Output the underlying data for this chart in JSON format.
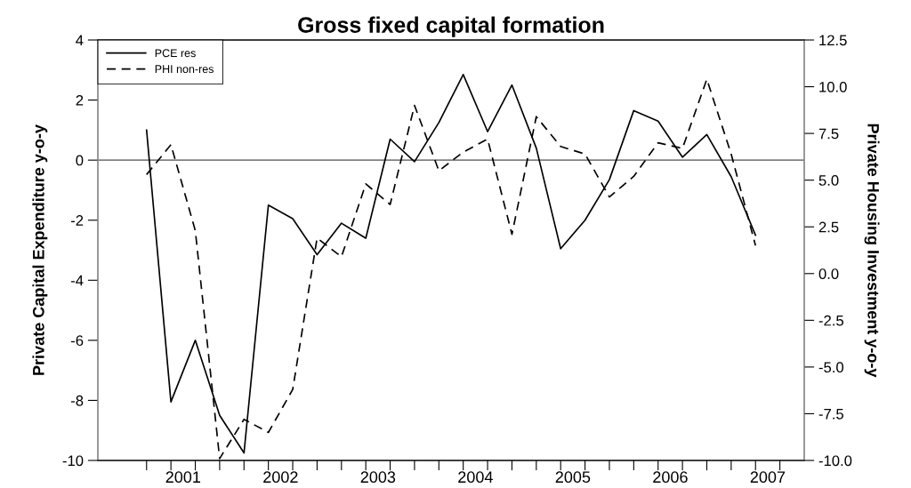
{
  "chart_data": {
    "type": "line",
    "title": "Gross fixed capital formation",
    "ylabel": "Private Capital Expenditure y-o-y",
    "y2label": "Private Housing Investment y-o-y",
    "x": [
      2001.0,
      2001.25,
      2001.5,
      2001.75,
      2002.0,
      2002.25,
      2002.5,
      2002.75,
      2003.0,
      2003.25,
      2003.5,
      2003.75,
      2004.0,
      2004.25,
      2004.5,
      2004.75,
      2005.0,
      2005.25,
      2005.5,
      2005.75,
      2006.0,
      2006.25,
      2006.5,
      2006.75,
      2007.0,
      2007.25
    ],
    "series": [
      {
        "name": "PCE res",
        "color": "#000000",
        "line_style": "solid",
        "values": [
          1.0,
          -8.05,
          -6.0,
          -8.5,
          -9.75,
          -1.5,
          -1.95,
          -3.15,
          -2.1,
          -2.6,
          0.7,
          -0.05,
          1.25,
          2.85,
          0.95,
          2.5,
          0.4,
          -2.95,
          -2.0,
          -0.65,
          1.65,
          1.3,
          0.1,
          0.85,
          -0.55,
          -2.5
        ]
      },
      {
        "name": "PHI non-res",
        "color": "#000000",
        "line_style": "dashed",
        "axis": "y2",
        "values": [
          5.3,
          6.9,
          2.3,
          -9.9,
          -7.8,
          -8.5,
          -6.2,
          1.9,
          0.9,
          4.8,
          3.7,
          9.0,
          5.5,
          6.5,
          7.2,
          2.1,
          8.4,
          6.8,
          6.4,
          4.1,
          5.2,
          7.0,
          6.7,
          10.4,
          6.4,
          1.5
        ]
      }
    ],
    "xlim": [
      2000.5,
      2007.75
    ],
    "xticks": [
      {
        "value": 2001,
        "label": null
      },
      {
        "value": 2001.25,
        "label": null
      },
      {
        "value": 2001.5,
        "label": null
      },
      {
        "value": 2001.75,
        "label": null
      },
      {
        "value": 2002,
        "label": null
      },
      {
        "value": 2002.25,
        "label": null
      },
      {
        "value": 2002.5,
        "label": null
      },
      {
        "value": 2002.75,
        "label": null
      },
      {
        "value": 2003,
        "label": null
      },
      {
        "value": 2003.25,
        "label": null
      },
      {
        "value": 2003.5,
        "label": null
      },
      {
        "value": 2003.75,
        "label": null
      },
      {
        "value": 2004,
        "label": null
      },
      {
        "value": 2004.25,
        "label": null
      },
      {
        "value": 2004.5,
        "label": null
      },
      {
        "value": 2004.75,
        "label": null
      },
      {
        "value": 2005,
        "label": null
      },
      {
        "value": 2005.25,
        "label": null
      },
      {
        "value": 2005.5,
        "label": null
      },
      {
        "value": 2005.75,
        "label": null
      },
      {
        "value": 2006,
        "label": null
      },
      {
        "value": 2006.25,
        "label": null
      },
      {
        "value": 2006.5,
        "label": null
      },
      {
        "value": 2006.75,
        "label": null
      },
      {
        "value": 2007,
        "label": null
      },
      {
        "value": 2007.25,
        "label": null
      },
      {
        "value": 2007.5,
        "label": null
      },
      {
        "value": 2001.375,
        "label": "2001"
      },
      {
        "value": 2002.375,
        "label": "2002"
      },
      {
        "value": 2003.375,
        "label": "2003"
      },
      {
        "value": 2004.375,
        "label": "2004"
      },
      {
        "value": 2005.375,
        "label": "2005"
      },
      {
        "value": 2006.375,
        "label": "2006"
      },
      {
        "value": 2007.375,
        "label": "2007"
      }
    ],
    "ylim": [
      -10,
      4
    ],
    "yticks": [
      {
        "value": -10,
        "label": "-10"
      },
      {
        "value": -8,
        "label": "-8"
      },
      {
        "value": -6,
        "label": "-6"
      },
      {
        "value": -4,
        "label": "-4"
      },
      {
        "value": -2,
        "label": "-2"
      },
      {
        "value": 0,
        "label": "0"
      },
      {
        "value": 2,
        "label": "2"
      },
      {
        "value": 4,
        "label": "4"
      }
    ],
    "y2lim": [
      -10.0,
      12.5
    ],
    "y2ticks": [
      {
        "value": -10,
        "label": "-10.0"
      },
      {
        "value": -7.5,
        "label": "-7.5"
      },
      {
        "value": -5,
        "label": "-5.0"
      },
      {
        "value": -2.5,
        "label": "-2.5"
      },
      {
        "value": 0,
        "label": "0.0"
      },
      {
        "value": 2.5,
        "label": "2.5"
      },
      {
        "value": 5,
        "label": "5.0"
      },
      {
        "value": 7.5,
        "label": "7.5"
      },
      {
        "value": 10,
        "label": "10.0"
      },
      {
        "value": 12.5,
        "label": "12.5"
      }
    ],
    "ref_lines": [
      {
        "axis": "y",
        "value": 0,
        "color": "#808080"
      }
    ],
    "legend": "top left",
    "grid": false
  }
}
